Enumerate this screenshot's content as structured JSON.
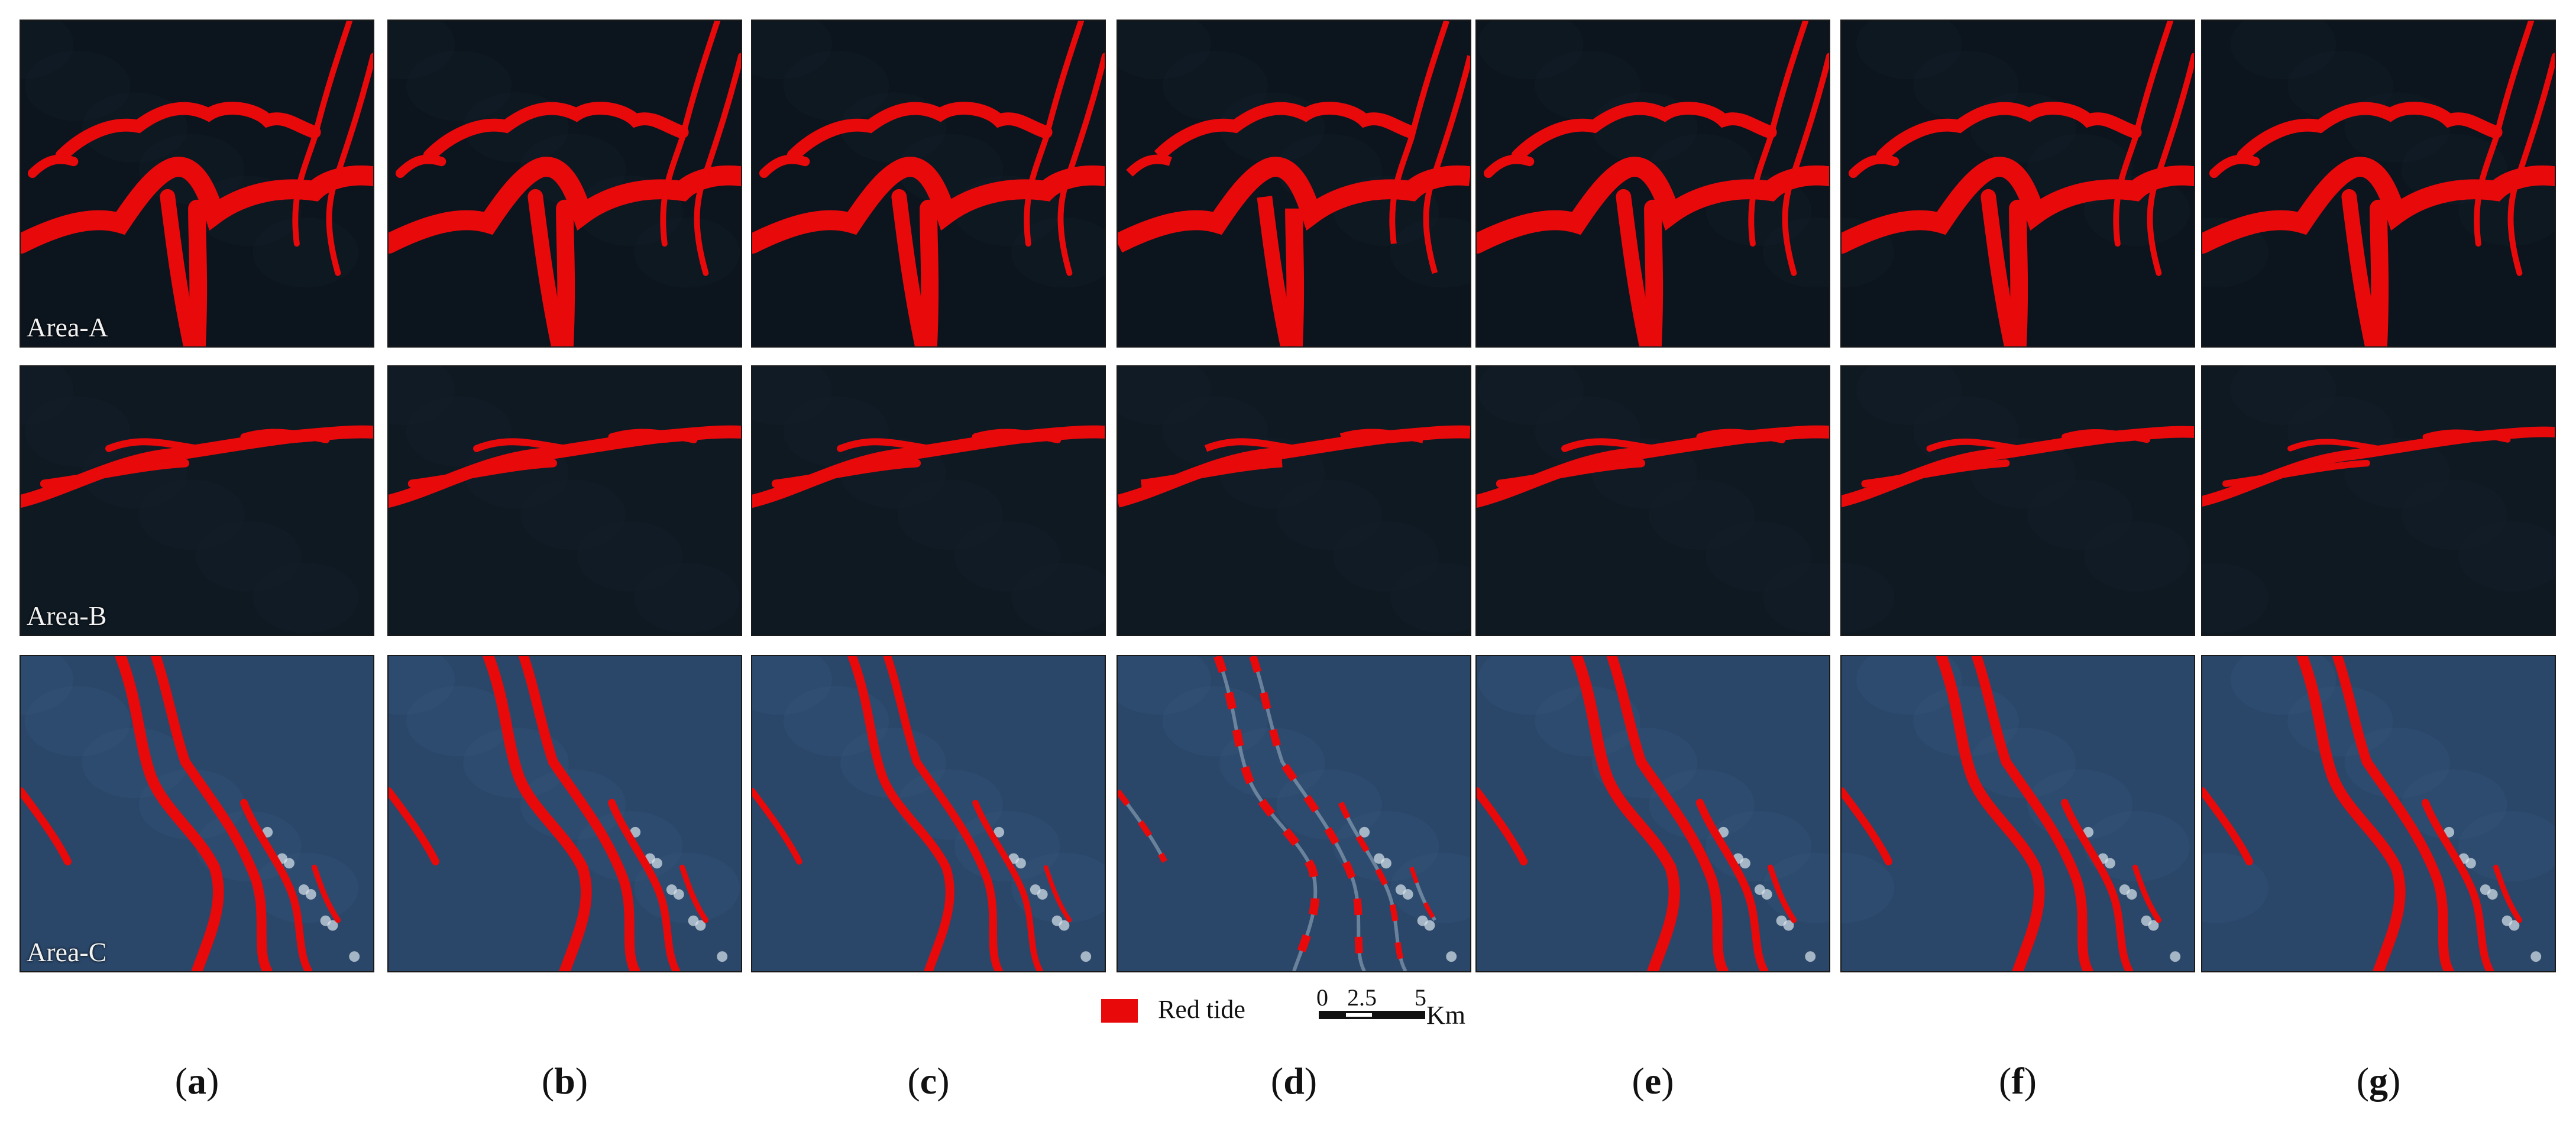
{
  "legend": {
    "label": "Red tide",
    "color": "#e8090b"
  },
  "scale_bar": {
    "ticks": [
      "0",
      "2.5",
      "5"
    ],
    "unit": "Km"
  },
  "areas": [
    {
      "label": "Area-A",
      "water": "#0c141d"
    },
    {
      "label": "Area-B",
      "water": "#0e1922"
    },
    {
      "label": "Area-C",
      "water": "#2a4668"
    }
  ],
  "columns": [
    {
      "letter": "a"
    },
    {
      "letter": "b"
    },
    {
      "letter": "c"
    },
    {
      "letter": "d"
    },
    {
      "letter": "e"
    },
    {
      "letter": "f"
    },
    {
      "letter": "g"
    }
  ],
  "detection_strength": [
    [
      1.0,
      1.0,
      0.9,
      1.0,
      1.0
    ],
    [
      1.0,
      1.0,
      0.9,
      0.75,
      0.35
    ],
    [
      1.0,
      1.0,
      0.6,
      0.15,
      0.5
    ],
    [
      1.0,
      1.0,
      0.55,
      0.95,
      0.0
    ],
    [
      1.0,
      1.0,
      0.95,
      0.0,
      0.0
    ],
    [
      1.0,
      0.85,
      0.9,
      0.1,
      0.0
    ],
    [
      1.0,
      0.7,
      0.9,
      0.55,
      0.15
    ]
  ]
}
